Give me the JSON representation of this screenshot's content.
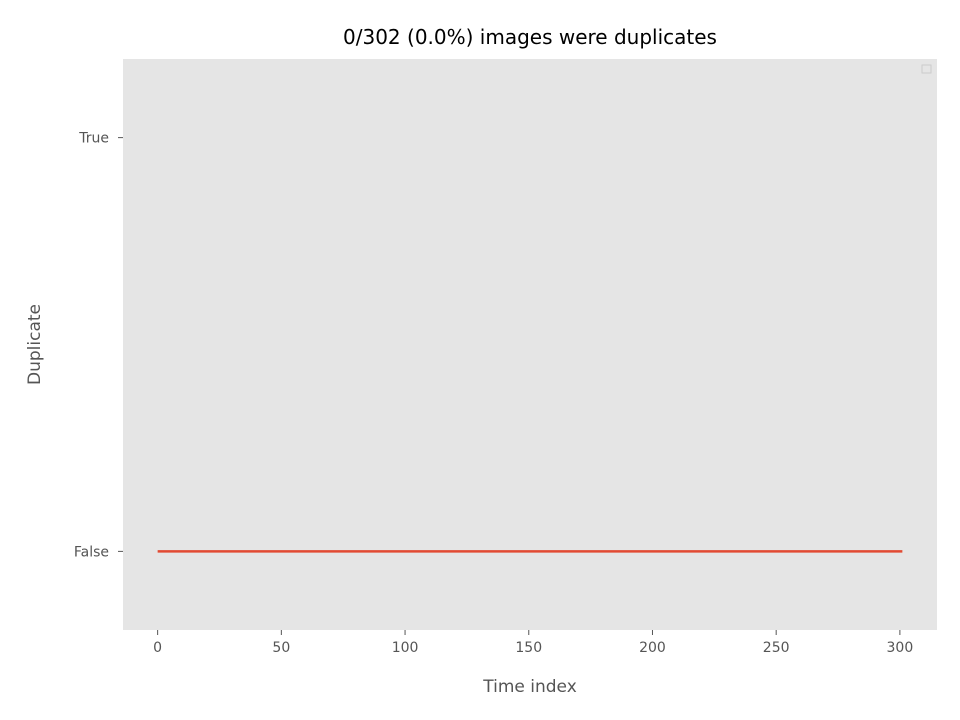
{
  "chart_data": {
    "type": "line",
    "title": "0/302 (0.0%) images were duplicates",
    "xlabel": "Time index",
    "ylabel": "Duplicate",
    "xlim": [
      -14,
      315
    ],
    "ylim": [
      -0.19,
      1.19
    ],
    "xticks": [
      0,
      50,
      100,
      150,
      200,
      250,
      300
    ],
    "xtick_labels": [
      "0",
      "50",
      "100",
      "150",
      "200",
      "250",
      "300"
    ],
    "yticks": [
      0,
      1
    ],
    "ytick_labels": [
      "False",
      "True"
    ],
    "grid": false,
    "legend": "upper right (empty)",
    "series": [
      {
        "x": [
          0,
          301
        ],
        "y": [
          0,
          0
        ]
      }
    ],
    "colors": {
      "plot_background": "#e5e5e5",
      "line": "#e24a33",
      "tick_text": "#555555",
      "title_text": "#000000"
    }
  }
}
